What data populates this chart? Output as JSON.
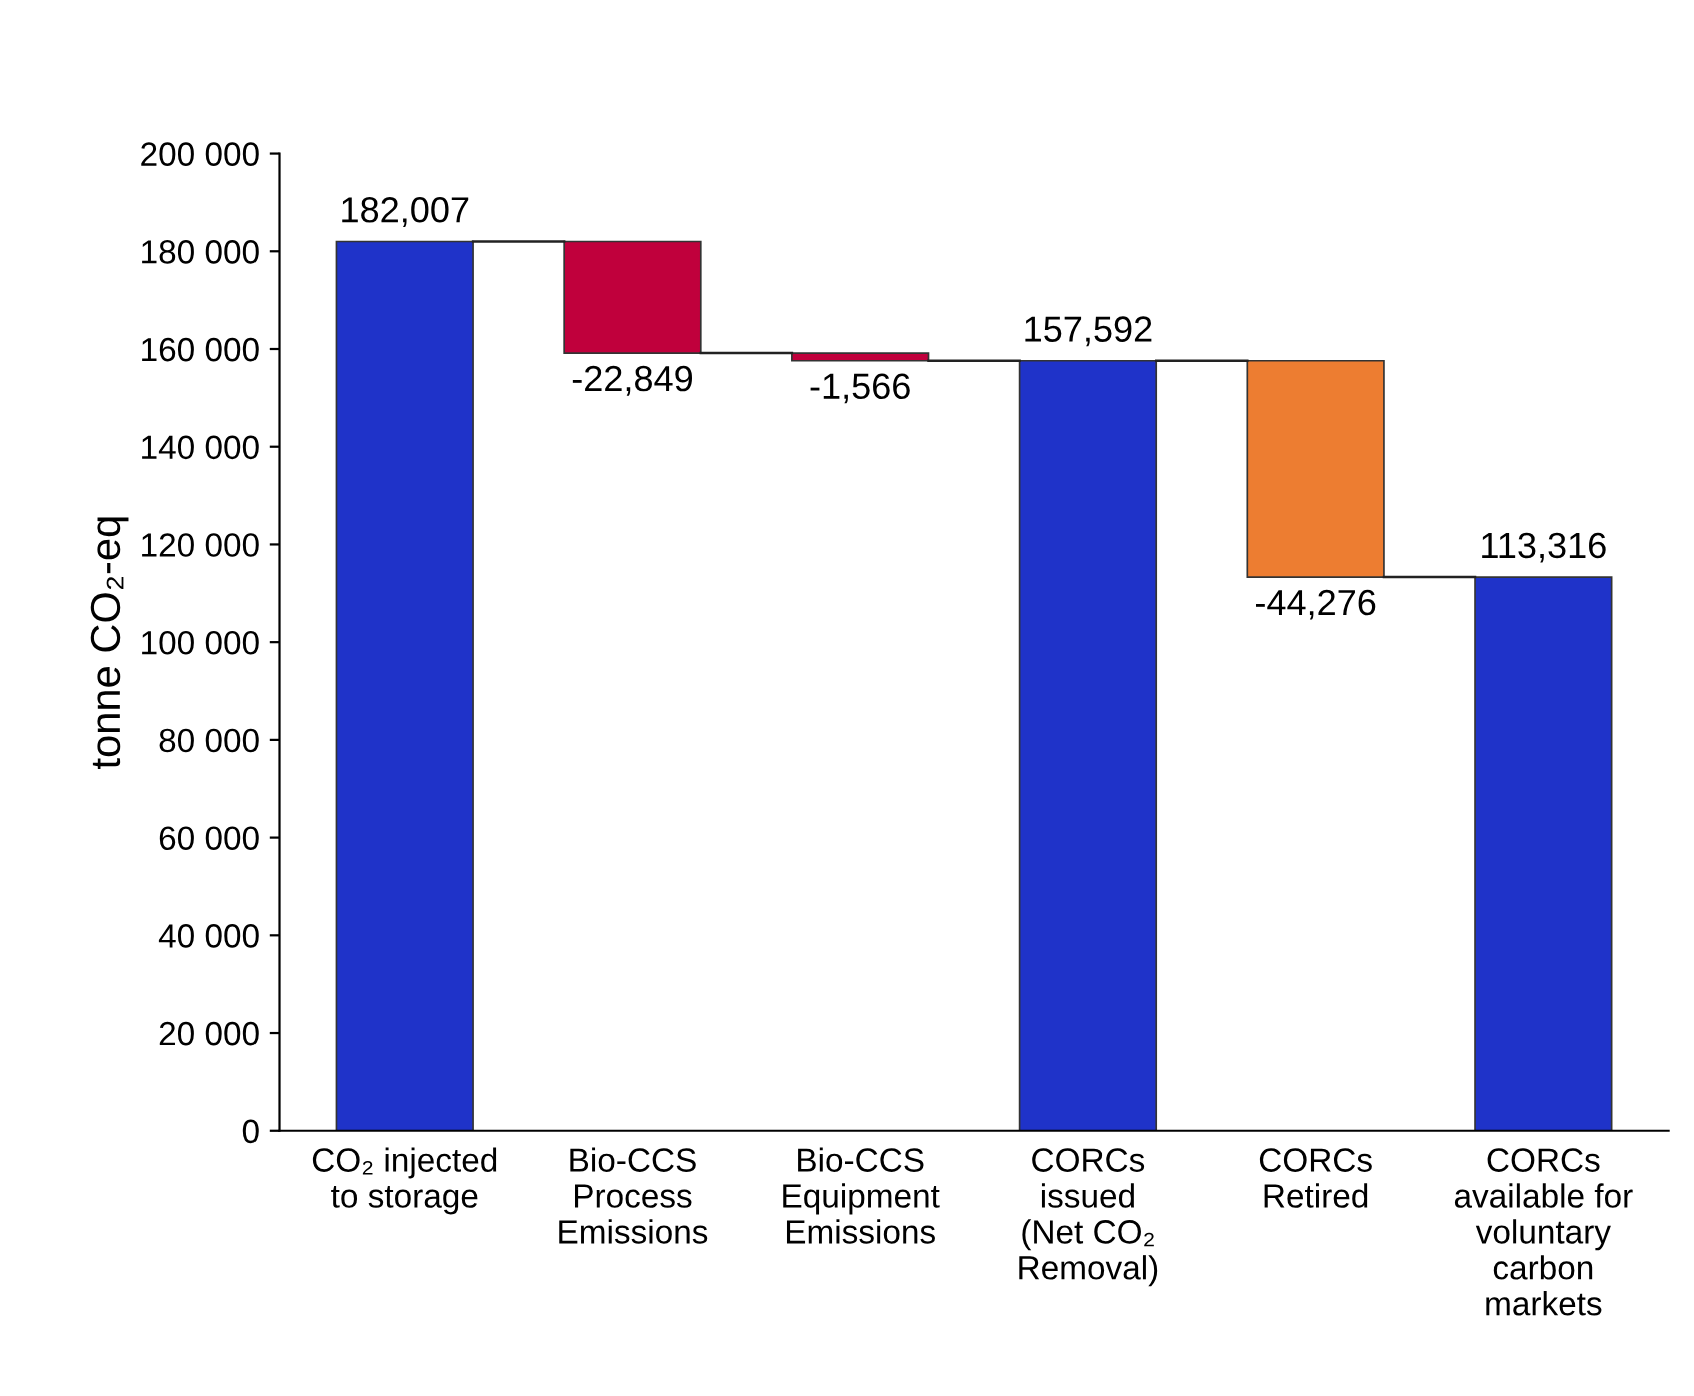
{
  "chart_data": {
    "type": "bar",
    "ylabel": "tonne CO₂-eq",
    "categories": [
      "CO₂ injected\nto storage",
      "Bio-CCS\nProcess\nEmissions",
      "Bio-CCS\nEquipment\nEmissions",
      "CORCs\nissued\n(Net CO₂\nRemoval)",
      "CORCs\nRetired",
      "CORCs\navailable for\nvoluntary\ncarbon\nmarkets"
    ],
    "values": [
      182007,
      -22849,
      -1566,
      157592,
      -44276,
      113316
    ],
    "base": [
      0,
      182007,
      159158,
      0,
      157592,
      0
    ],
    "colors": [
      "#1f33c9",
      "#c0003c",
      "#c0003c",
      "#1f33c9",
      "#ed7d31",
      "#1f33c9"
    ],
    "value_labels": [
      "182,007",
      "-22,849",
      "-1,566",
      "157,592",
      "-44,276",
      "113,316"
    ],
    "ylim": [
      0,
      200000
    ],
    "yticks": [
      {
        "value": 0,
        "label": "0"
      },
      {
        "value": 20000,
        "label": "20 000"
      },
      {
        "value": 40000,
        "label": "40 000"
      },
      {
        "value": 60000,
        "label": "60 000"
      },
      {
        "value": 80000,
        "label": "80 000"
      },
      {
        "value": 100000,
        "label": "100 000"
      },
      {
        "value": 120000,
        "label": "120 000"
      },
      {
        "value": 140000,
        "label": "140 000"
      },
      {
        "value": 160000,
        "label": "160 000"
      },
      {
        "value": 180000,
        "label": "180 000"
      },
      {
        "value": 200000,
        "label": "200 000"
      }
    ],
    "grid": false,
    "legend": false
  }
}
